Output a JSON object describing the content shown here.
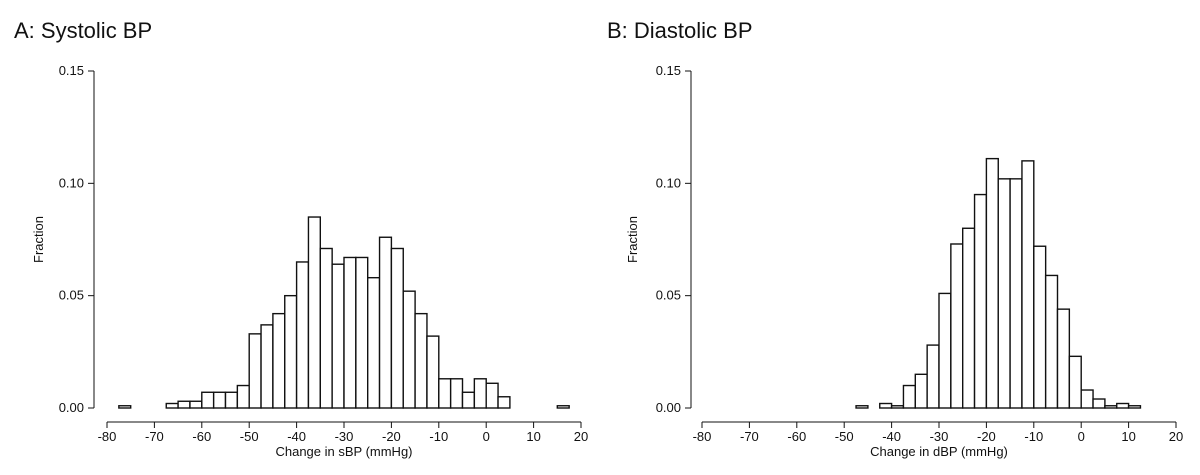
{
  "chart_data": [
    {
      "type": "bar",
      "title": "A: Systolic BP",
      "xlabel": "Change in sBP (mmHg)",
      "ylabel": "Fraction",
      "xlim": [
        -80,
        20
      ],
      "ylim": [
        0,
        0.15
      ],
      "xticks": [
        "-80",
        "-70",
        "-60",
        "-50",
        "-40",
        "-30",
        "-20",
        "-10",
        "0",
        "10",
        "20"
      ],
      "yticks": [
        "0.00",
        "0.05",
        "0.10",
        "0.15"
      ],
      "bin_width": 2.5,
      "bins": [
        {
          "x0": -77.5,
          "x1": -75,
          "value": 0.001
        },
        {
          "x0": -67.5,
          "x1": -65,
          "value": 0.002
        },
        {
          "x0": -65,
          "x1": -62.5,
          "value": 0.003
        },
        {
          "x0": -62.5,
          "x1": -60,
          "value": 0.003
        },
        {
          "x0": -60,
          "x1": -57.5,
          "value": 0.007
        },
        {
          "x0": -57.5,
          "x1": -55,
          "value": 0.007
        },
        {
          "x0": -55,
          "x1": -52.5,
          "value": 0.007
        },
        {
          "x0": -52.5,
          "x1": -50,
          "value": 0.01
        },
        {
          "x0": -50,
          "x1": -47.5,
          "value": 0.033
        },
        {
          "x0": -47.5,
          "x1": -45,
          "value": 0.037
        },
        {
          "x0": -45,
          "x1": -42.5,
          "value": 0.042
        },
        {
          "x0": -42.5,
          "x1": -40,
          "value": 0.05
        },
        {
          "x0": -40,
          "x1": -37.5,
          "value": 0.065
        },
        {
          "x0": -37.5,
          "x1": -35,
          "value": 0.085
        },
        {
          "x0": -35,
          "x1": -32.5,
          "value": 0.071
        },
        {
          "x0": -32.5,
          "x1": -30,
          "value": 0.064
        },
        {
          "x0": -30,
          "x1": -27.5,
          "value": 0.067
        },
        {
          "x0": -27.5,
          "x1": -25,
          "value": 0.067
        },
        {
          "x0": -25,
          "x1": -22.5,
          "value": 0.058
        },
        {
          "x0": -22.5,
          "x1": -20,
          "value": 0.076
        },
        {
          "x0": -20,
          "x1": -17.5,
          "value": 0.071
        },
        {
          "x0": -17.5,
          "x1": -15,
          "value": 0.052
        },
        {
          "x0": -15,
          "x1": -12.5,
          "value": 0.042
        },
        {
          "x0": -12.5,
          "x1": -10,
          "value": 0.032
        },
        {
          "x0": -10,
          "x1": -7.5,
          "value": 0.013
        },
        {
          "x0": -7.5,
          "x1": -5,
          "value": 0.013
        },
        {
          "x0": -5,
          "x1": -2.5,
          "value": 0.007
        },
        {
          "x0": -2.5,
          "x1": 0,
          "value": 0.013
        },
        {
          "x0": 0,
          "x1": 2.5,
          "value": 0.011
        },
        {
          "x0": 2.5,
          "x1": 5,
          "value": 0.005
        },
        {
          "x0": 15,
          "x1": 17.5,
          "value": 0.001
        }
      ]
    },
    {
      "type": "bar",
      "title": "B: Diastolic BP",
      "xlabel": "Change in dBP (mmHg)",
      "ylabel": "Fraction",
      "xlim": [
        -80,
        20
      ],
      "ylim": [
        0,
        0.15
      ],
      "xticks": [
        "-80",
        "-70",
        "-60",
        "-50",
        "-40",
        "-30",
        "-20",
        "-10",
        "0",
        "10",
        "20"
      ],
      "yticks": [
        "0.00",
        "0.05",
        "0.10",
        "0.15"
      ],
      "bin_width": 2.5,
      "bins": [
        {
          "x0": -47.5,
          "x1": -45,
          "value": 0.001
        },
        {
          "x0": -42.5,
          "x1": -40,
          "value": 0.002
        },
        {
          "x0": -40,
          "x1": -37.5,
          "value": 0.001
        },
        {
          "x0": -37.5,
          "x1": -35,
          "value": 0.01
        },
        {
          "x0": -35,
          "x1": -32.5,
          "value": 0.015
        },
        {
          "x0": -32.5,
          "x1": -30,
          "value": 0.028
        },
        {
          "x0": -30,
          "x1": -27.5,
          "value": 0.051
        },
        {
          "x0": -27.5,
          "x1": -25,
          "value": 0.073
        },
        {
          "x0": -25,
          "x1": -22.5,
          "value": 0.08
        },
        {
          "x0": -22.5,
          "x1": -20,
          "value": 0.095
        },
        {
          "x0": -20,
          "x1": -17.5,
          "value": 0.111
        },
        {
          "x0": -17.5,
          "x1": -15,
          "value": 0.102
        },
        {
          "x0": -15,
          "x1": -12.5,
          "value": 0.102
        },
        {
          "x0": -12.5,
          "x1": -10,
          "value": 0.11
        },
        {
          "x0": -10,
          "x1": -7.5,
          "value": 0.072
        },
        {
          "x0": -7.5,
          "x1": -5,
          "value": 0.059
        },
        {
          "x0": -5,
          "x1": -2.5,
          "value": 0.044
        },
        {
          "x0": -2.5,
          "x1": 0,
          "value": 0.023
        },
        {
          "x0": 0,
          "x1": 2.5,
          "value": 0.008
        },
        {
          "x0": 2.5,
          "x1": 5,
          "value": 0.004
        },
        {
          "x0": 5,
          "x1": 7.5,
          "value": 0.001
        },
        {
          "x0": 7.5,
          "x1": 10,
          "value": 0.002
        },
        {
          "x0": 10,
          "x1": 12.5,
          "value": 0.001
        }
      ]
    }
  ]
}
